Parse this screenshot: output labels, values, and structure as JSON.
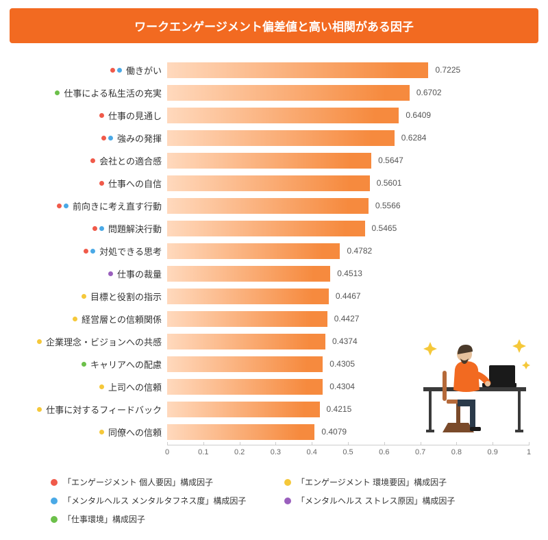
{
  "title": "ワークエンゲージメント偏差値と高い相関がある因子",
  "chart": {
    "type": "bar",
    "xlim": [
      0,
      1
    ],
    "xtick_step": 0.1,
    "bar_gradient_from": "#ffd9bd",
    "bar_gradient_to": "#f68a3e",
    "background_color": "#ffffff",
    "axis_color": "#cccccc",
    "label_fontsize": 13,
    "value_fontsize": 12,
    "max_value": 1.0
  },
  "category_colors": {
    "red": "#f05a4a",
    "yellow": "#f5c83a",
    "blue": "#4aa9e6",
    "purple": "#9a5fbd",
    "green": "#6cc04a"
  },
  "items": [
    {
      "label": "働きがい",
      "value": 0.7225,
      "cats": [
        "red",
        "blue"
      ]
    },
    {
      "label": "仕事による私生活の充実",
      "value": 0.6702,
      "cats": [
        "green"
      ]
    },
    {
      "label": "仕事の見通し",
      "value": 0.6409,
      "cats": [
        "red"
      ]
    },
    {
      "label": "強みの発揮",
      "value": 0.6284,
      "cats": [
        "red",
        "blue"
      ]
    },
    {
      "label": "会社との適合感",
      "value": 0.5647,
      "cats": [
        "red"
      ]
    },
    {
      "label": "仕事への自信",
      "value": 0.5601,
      "cats": [
        "red"
      ]
    },
    {
      "label": "前向きに考え直す行動",
      "value": 0.5566,
      "cats": [
        "red",
        "blue"
      ]
    },
    {
      "label": "問題解決行動",
      "value": 0.5465,
      "cats": [
        "red",
        "blue"
      ]
    },
    {
      "label": "対処できる思考",
      "value": 0.4782,
      "cats": [
        "red",
        "blue"
      ]
    },
    {
      "label": "仕事の裁量",
      "value": 0.4513,
      "cats": [
        "purple"
      ]
    },
    {
      "label": "目標と役割の指示",
      "value": 0.4467,
      "cats": [
        "yellow"
      ]
    },
    {
      "label": "経営層との信頼関係",
      "value": 0.4427,
      "cats": [
        "yellow"
      ]
    },
    {
      "label": "企業理念・ビジョンへの共感",
      "value": 0.4374,
      "cats": [
        "yellow"
      ]
    },
    {
      "label": "キャリアへの配慮",
      "value": 0.4305,
      "cats": [
        "green"
      ]
    },
    {
      "label": "上司への信頼",
      "value": 0.4304,
      "cats": [
        "yellow"
      ]
    },
    {
      "label": "仕事に対するフィードバック",
      "value": 0.4215,
      "cats": [
        "yellow"
      ]
    },
    {
      "label": "同僚への信頼",
      "value": 0.4079,
      "cats": [
        "yellow"
      ]
    }
  ],
  "legend": [
    {
      "cat": "red",
      "label": "「エンゲージメント 個人要因」構成因子"
    },
    {
      "cat": "yellow",
      "label": "「エンゲージメント 環境要因」構成因子"
    },
    {
      "cat": "blue",
      "label": "「メンタルヘルス メンタルタフネス度」構成因子"
    },
    {
      "cat": "purple",
      "label": "「メンタルヘルス ストレス原因」構成因子"
    },
    {
      "cat": "green",
      "label": "「仕事環境」構成因子"
    }
  ],
  "illustration": {
    "desk_color": "#3a3a3a",
    "person_shirt": "#f26a21",
    "person_pants": "#2a3a4a",
    "person_skin": "#e6c19c",
    "person_beard": "#4a3a2a",
    "laptop_color": "#1a1a1a",
    "chair_color": "#b56a3a",
    "sparkle_color": "#f5c83a"
  }
}
